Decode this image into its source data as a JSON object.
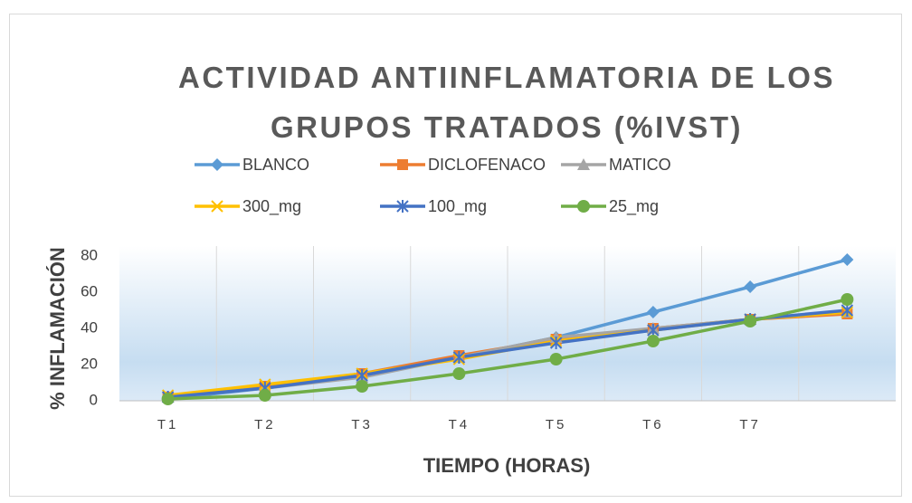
{
  "chart_data": {
    "type": "line",
    "title": "ACTIVIDAD ANTIINFLAMATORIA DE LOS GRUPOS TRATADOS (%IVST)",
    "x_label": "TIEMPO (HORAS)",
    "y_label": "% INFLAMACIÓN",
    "categories": [
      "T1",
      "T2",
      "T3",
      "T4",
      "T5",
      "T6",
      "T7",
      null
    ],
    "series": [
      {
        "name": "BLANCO",
        "color": "#5b9bd5",
        "marker": "diamond",
        "values": [
          1,
          7,
          14,
          24,
          35,
          49,
          63,
          78
        ]
      },
      {
        "name": "DICLOFENACO",
        "color": "#ed7d31",
        "marker": "square",
        "values": [
          2,
          8,
          15,
          25,
          34,
          40,
          45,
          48
        ]
      },
      {
        "name": "MATICO",
        "color": "#a5a5a5",
        "marker": "triangle",
        "values": [
          2,
          7,
          13,
          24,
          35,
          40,
          45,
          49
        ]
      },
      {
        "name": "300_mg",
        "color": "#ffc000",
        "marker": "x",
        "values": [
          3,
          9,
          15,
          23,
          33,
          39,
          45,
          49
        ]
      },
      {
        "name": "100_mg",
        "color": "#4472c4",
        "marker": "star",
        "values": [
          2,
          7,
          14,
          24,
          32,
          39,
          45,
          50
        ]
      },
      {
        "name": "25_mg",
        "color": "#70ad47",
        "marker": "circle",
        "values": [
          1,
          3,
          8,
          15,
          23,
          33,
          44,
          56
        ]
      }
    ],
    "ylim": [
      0,
      80
    ],
    "yticks": [
      0,
      20,
      40,
      60,
      80
    ],
    "legend": "top"
  }
}
